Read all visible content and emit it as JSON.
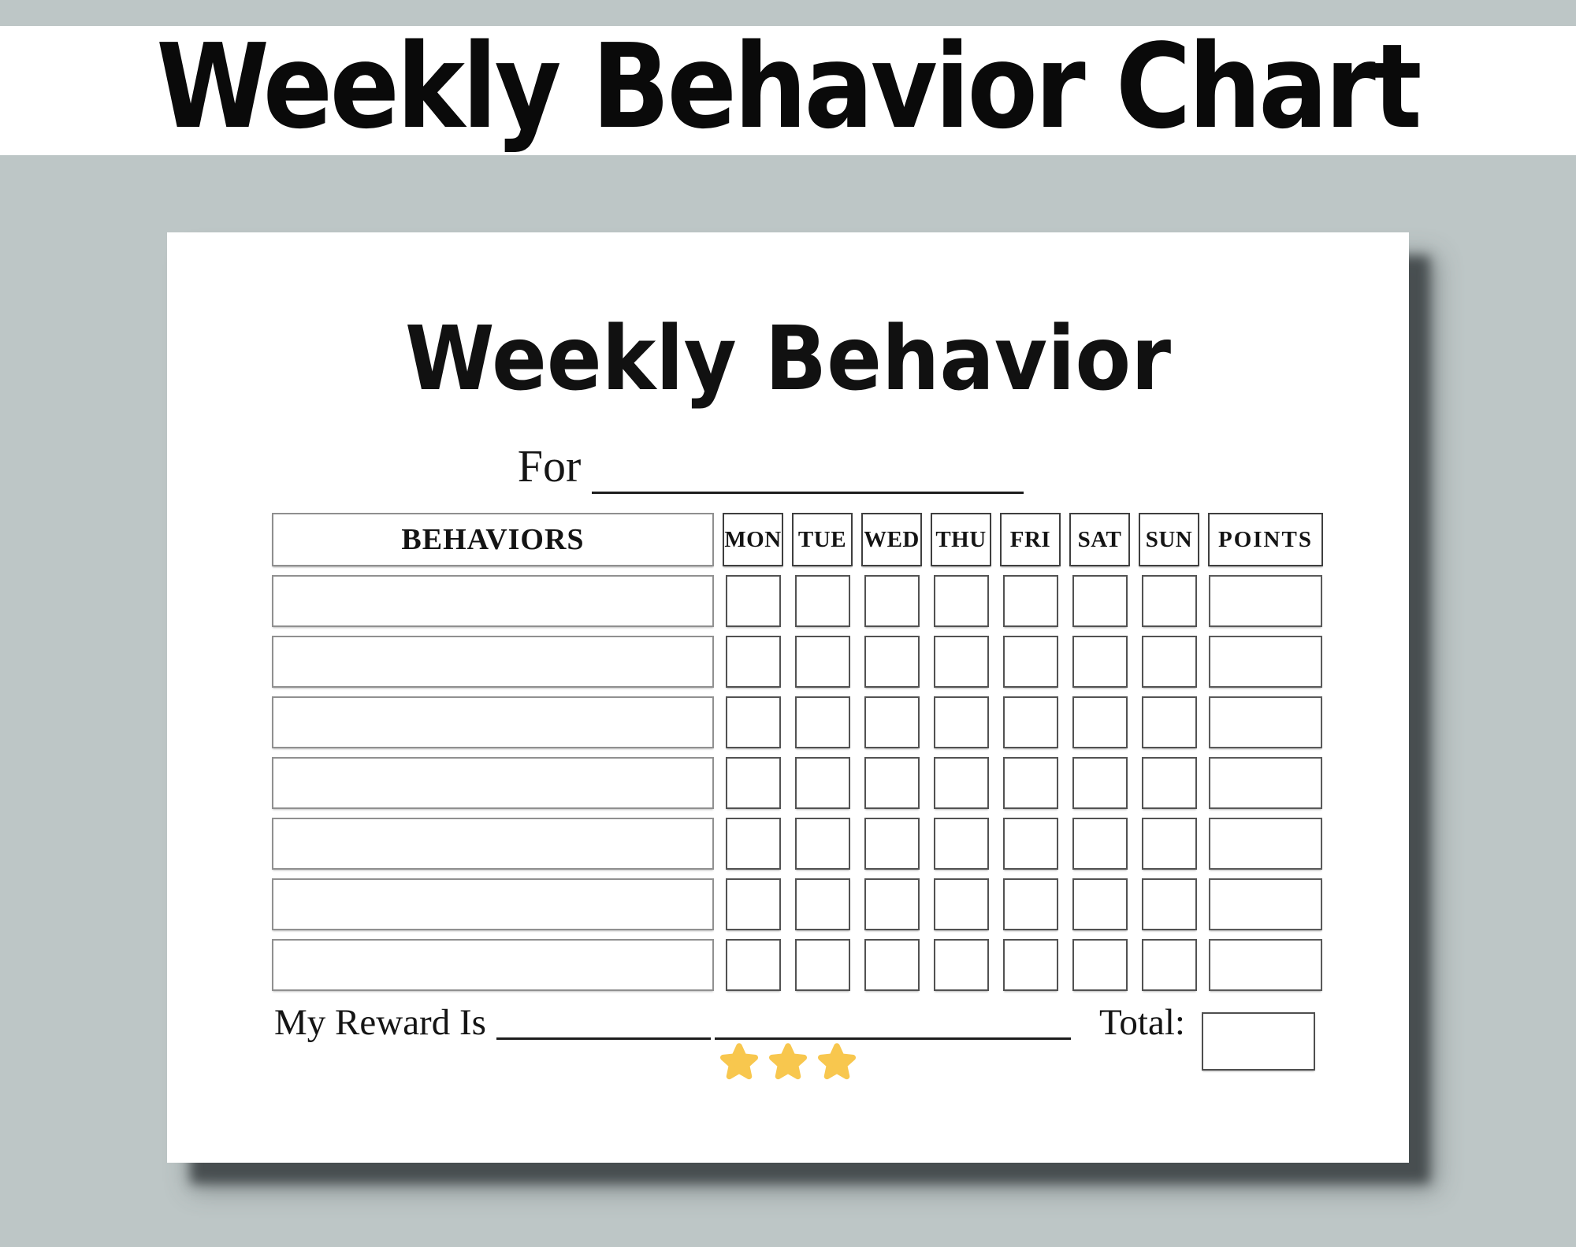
{
  "page": {
    "background_color": "#bdc6c6"
  },
  "banner": {
    "title": "Weekly Behavior Chart",
    "background_color": "#ffffff",
    "text_color": "#0a0a0a"
  },
  "card": {
    "background_color": "#ffffff",
    "shadow_color": "#42494b",
    "title": "Weekly Behavior",
    "for_label": "For",
    "table": {
      "behaviors_header": "BEHAVIORS",
      "day_headers": [
        "MON",
        "TUE",
        "WED",
        "THU",
        "FRI",
        "SAT",
        "SUN"
      ],
      "points_header": "POINTS",
      "data_row_count": 7,
      "cells_are_empty": true
    },
    "footer": {
      "reward_label": "My Reward Is",
      "total_label": "Total:"
    },
    "stars": {
      "icon": "star-icon",
      "count": 3,
      "color": "#F8C74E"
    }
  }
}
